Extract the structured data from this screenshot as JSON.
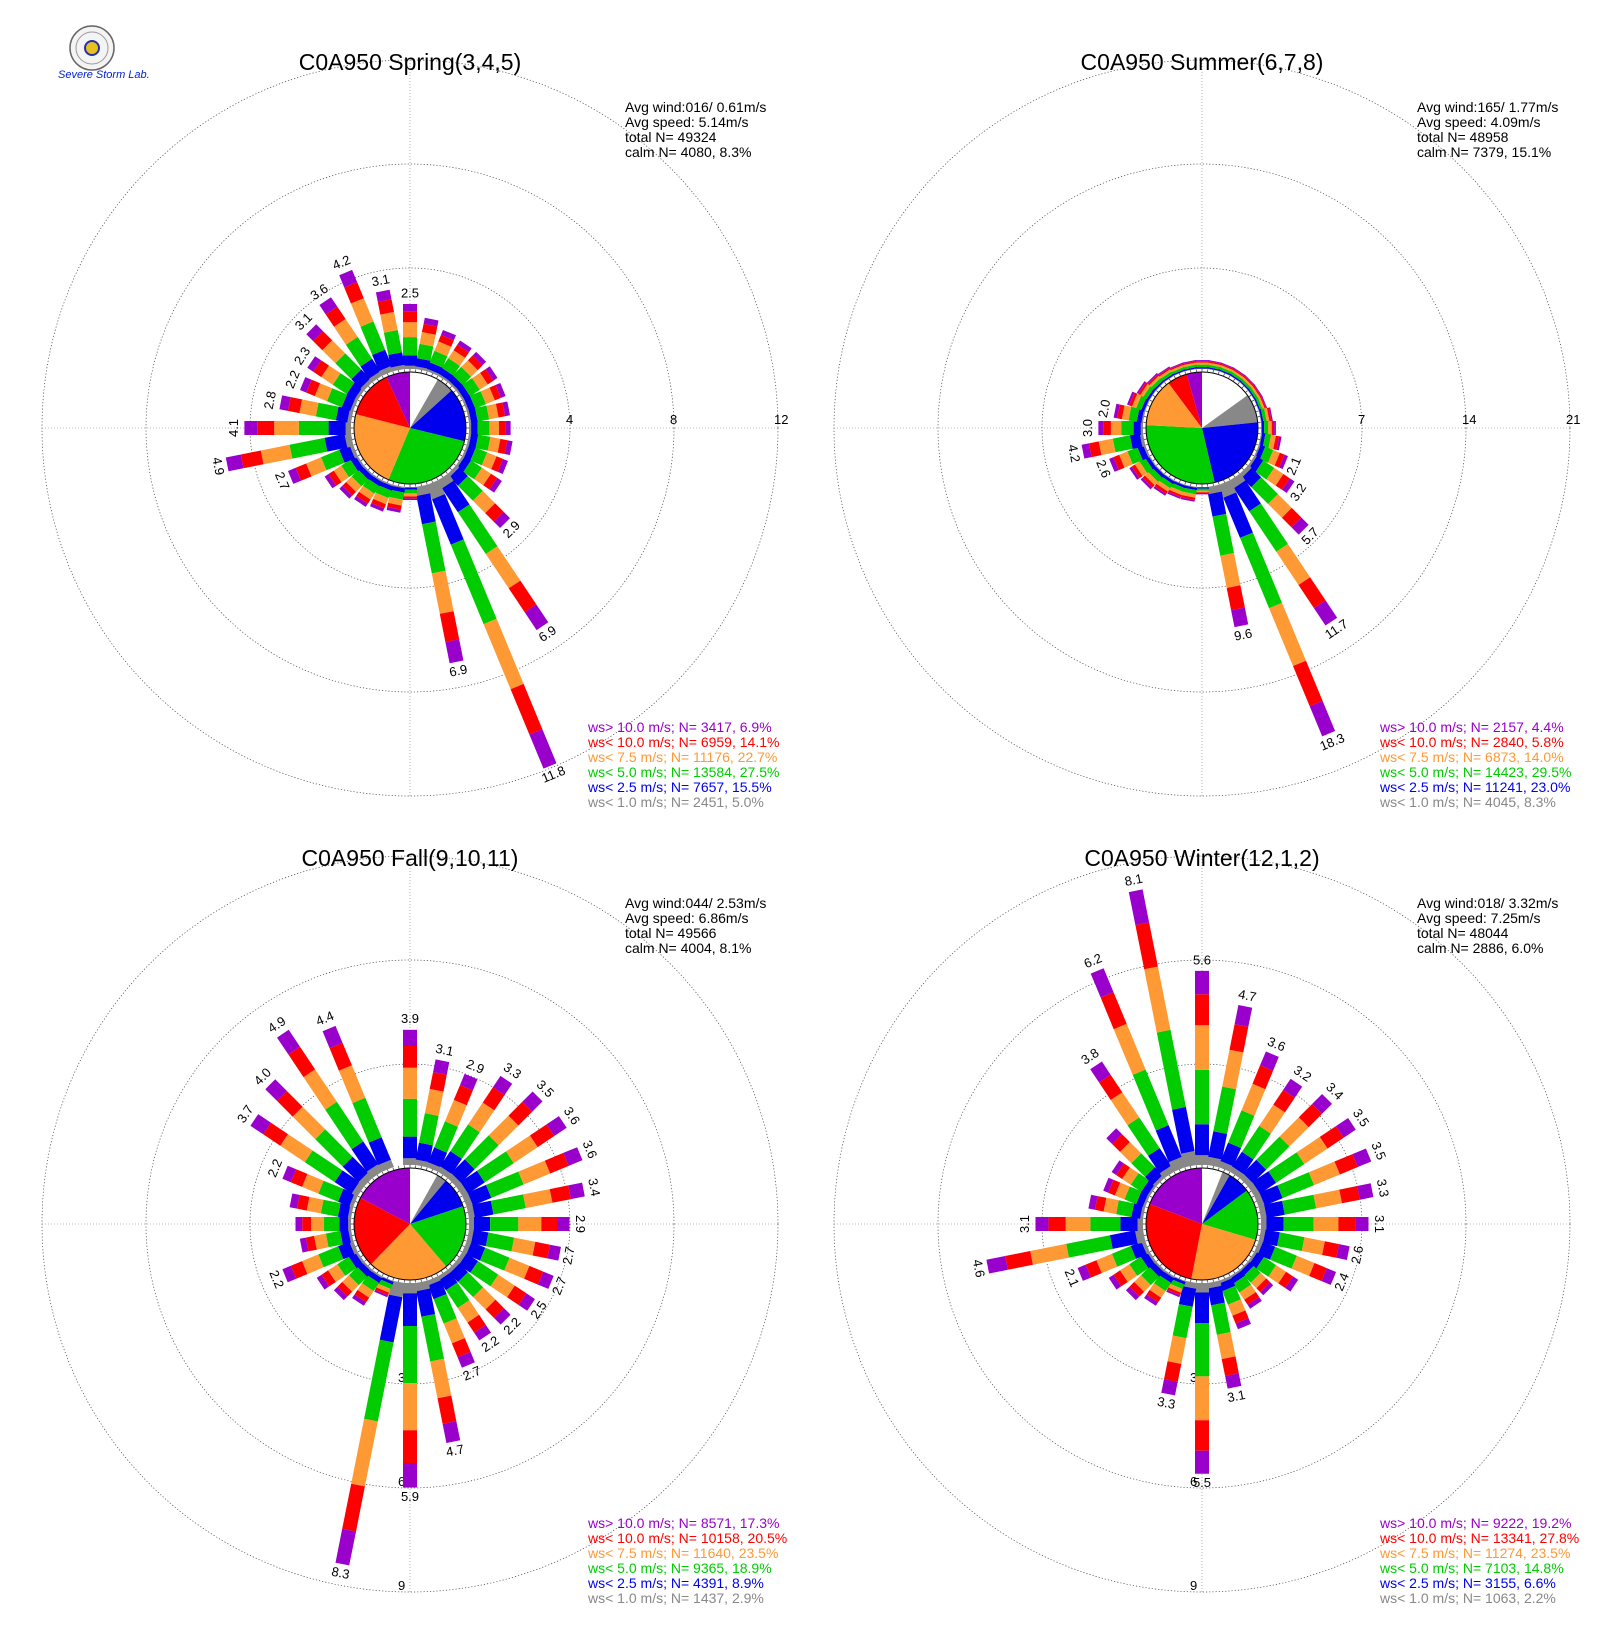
{
  "colors": {
    "calm": "#ffffff",
    "lt1": "#888888",
    "lt2_5": "#0000ee",
    "lt5": "#00cc00",
    "lt7_5": "#ff9933",
    "lt10": "#ff0000",
    "gt10": "#9900cc"
  },
  "logo": {
    "icon": "severe-storm-lab-seal-icon",
    "text": "Severe Storm Lab."
  },
  "chart_data": [
    {
      "type": "wind-rose",
      "title": "C0A950 Spring(3,4,5)",
      "stats": [
        "Avg wind:016/ 0.61m/s",
        "Avg speed: 5.14m/s",
        "total N=      49324",
        "calm N=   4080,   8.3%"
      ],
      "ring_values": [
        4,
        8,
        12
      ],
      "ring_labels": [
        "4",
        "8",
        "12"
      ],
      "rmax": 12,
      "legend": [
        {
          "text": "ws> 10.0 m/s; N=  3417,  6.9%",
          "color": "gt10"
        },
        {
          "text": "ws< 10.0 m/s; N=  6959, 14.1%",
          "color": "lt10"
        },
        {
          "text": "ws<  7.5 m/s; N= 11176, 22.7%",
          "color": "lt7_5"
        },
        {
          "text": "ws<  5.0 m/s; N= 13584, 27.5%",
          "color": "lt5"
        },
        {
          "text": "ws<  2.5 m/s; N=  7657, 15.5%",
          "color": "lt2_5"
        },
        {
          "text": "ws<  1.0 m/s; N=  2451,  5.0%",
          "color": "lt1"
        }
      ],
      "pie": [
        8.3,
        5.0,
        15.5,
        27.5,
        22.7,
        14.1,
        6.9
      ],
      "totals": [
        2.5,
        2.0,
        1.7,
        1.6,
        1.6,
        1.6,
        1.6,
        1.6,
        1.6,
        1.7,
        1.7,
        1.8,
        2.9,
        6.9,
        11.8,
        6.9,
        0.5,
        1.0,
        1.1,
        1.2,
        1.3,
        1.5,
        2.7,
        4.9,
        4.1,
        2.8,
        2.2,
        2.3,
        3.1,
        3.6,
        4.2,
        3.1
      ],
      "labels": [
        "2.5",
        "",
        "",
        "",
        "",
        "",
        "",
        "",
        "",
        "",
        "",
        "",
        "2.9",
        "6.9",
        "11.8",
        "6.9",
        "",
        "",
        "",
        "",
        "",
        "",
        "2.7",
        "4.9",
        "4.1",
        "2.8",
        "2.2",
        "2.3",
        "3.1",
        "3.6",
        "4.2",
        "3.1"
      ]
    },
    {
      "type": "wind-rose",
      "title": "C0A950 Summer(6,7,8)",
      "stats": [
        "Avg wind:165/ 1.77m/s",
        "Avg speed: 4.09m/s",
        "total N=      48958",
        "calm N=   7379,  15.1%"
      ],
      "ring_values": [
        7,
        14,
        21
      ],
      "ring_labels": [
        "7",
        "14",
        "21"
      ],
      "rmax": 21,
      "legend": [
        {
          "text": "ws> 10.0 m/s; N=  2157,  4.4%",
          "color": "gt10"
        },
        {
          "text": "ws< 10.0 m/s; N=  2840,  5.8%",
          "color": "lt10"
        },
        {
          "text": "ws<  7.5 m/s; N=  6873, 14.0%",
          "color": "lt7_5"
        },
        {
          "text": "ws<  5.0 m/s; N= 14423, 29.5%",
          "color": "lt5"
        },
        {
          "text": "ws<  2.5 m/s; N= 11241, 23.0%",
          "color": "lt2_5"
        },
        {
          "text": "ws<  1.0 m/s; N=  4045,  8.3%",
          "color": "lt1"
        }
      ],
      "pie": [
        15.1,
        8.3,
        23.0,
        29.5,
        14.0,
        5.8,
        4.4
      ],
      "totals": [
        0.6,
        0.6,
        0.6,
        0.6,
        0.6,
        0.6,
        0.6,
        0.8,
        1.0,
        1.4,
        2.1,
        3.2,
        5.7,
        11.7,
        18.3,
        9.6,
        0.5,
        1.0,
        1.0,
        1.2,
        1.4,
        1.6,
        2.6,
        4.2,
        3.0,
        2.0,
        1.3,
        1.0,
        0.8,
        0.7,
        0.6,
        0.6
      ],
      "labels": [
        "",
        "",
        "",
        "",
        "",
        "",
        "",
        "",
        "",
        "",
        "2.1",
        "3.2",
        "5.7",
        "11.7",
        "18.3",
        "9.6",
        "",
        "",
        "",
        "",
        "",
        "",
        "2.6",
        "4.2",
        "3.0",
        "2.0",
        "",
        "",
        "",
        "",
        "",
        ""
      ]
    },
    {
      "type": "wind-rose",
      "title": "C0A950 Fall(9,10,11)",
      "stats": [
        "Avg wind:044/ 2.53m/s",
        "Avg speed: 6.86m/s",
        "total N=      49566",
        "calm N=   4004,   8.1%"
      ],
      "ring_values": [
        3,
        6,
        9
      ],
      "ring_labels": [
        "3",
        "6",
        "9"
      ],
      "rmax": 9,
      "legend": [
        {
          "text": "ws> 10.0 m/s; N=  8571, 17.3%",
          "color": "gt10"
        },
        {
          "text": "ws< 10.0 m/s; N= 10158, 20.5%",
          "color": "lt10"
        },
        {
          "text": "ws<  7.5 m/s; N= 11640, 23.5%",
          "color": "lt7_5"
        },
        {
          "text": "ws<  5.0 m/s; N=  9365, 18.9%",
          "color": "lt5"
        },
        {
          "text": "ws<  2.5 m/s; N=  4391,  8.9%",
          "color": "lt2_5"
        },
        {
          "text": "ws<  1.0 m/s; N=  1437,  2.9%",
          "color": "lt1"
        }
      ],
      "pie": [
        8.1,
        2.9,
        8.9,
        18.9,
        23.5,
        20.5,
        17.3
      ],
      "totals": [
        3.9,
        3.1,
        2.9,
        3.3,
        3.5,
        3.6,
        3.6,
        3.4,
        2.9,
        2.7,
        2.7,
        2.5,
        2.2,
        2.2,
        2.7,
        4.7,
        5.9,
        8.3,
        0.5,
        1.0,
        1.2,
        1.4,
        2.2,
        1.5,
        1.6,
        1.8,
        2.2,
        3.7,
        4.0,
        4.9,
        4.4,
        0.0
      ],
      "labels": [
        "3.9",
        "3.1",
        "2.9",
        "3.3",
        "3.5",
        "3.6",
        "3.6",
        "3.4",
        "2.9",
        "2.7",
        "2.7",
        "2.5",
        "2.2",
        "2.2",
        "2.7",
        "4.7",
        "5.9",
        "8.3",
        "",
        "",
        "",
        "",
        "2.2",
        "",
        "",
        "",
        "2.2",
        "3.7",
        "4.0",
        "4.9",
        "4.4",
        ""
      ]
    },
    {
      "type": "wind-rose",
      "title": "C0A950 Winter(12,1,2)",
      "stats": [
        "Avg wind:018/ 3.32m/s",
        "Avg speed: 7.25m/s",
        "total N=      48044",
        "calm N=   2886,   6.0%"
      ],
      "ring_values": [
        3,
        6,
        9
      ],
      "ring_labels": [
        "3",
        "6",
        "9"
      ],
      "rmax": 9,
      "legend": [
        {
          "text": "ws> 10.0 m/s; N=  9222, 19.2%",
          "color": "gt10"
        },
        {
          "text": "ws< 10.0 m/s; N= 13341, 27.8%",
          "color": "lt10"
        },
        {
          "text": "ws<  7.5 m/s; N= 11274, 23.5%",
          "color": "lt7_5"
        },
        {
          "text": "ws<  5.0 m/s; N=  7103, 14.8%",
          "color": "lt5"
        },
        {
          "text": "ws<  2.5 m/s; N=  3155,  6.6%",
          "color": "lt2_5"
        },
        {
          "text": "ws<  1.0 m/s; N=  1063,  2.2%",
          "color": "lt1"
        }
      ],
      "pie": [
        6.0,
        2.2,
        6.6,
        14.8,
        23.5,
        27.8,
        19.2
      ],
      "totals": [
        5.6,
        4.7,
        3.6,
        3.2,
        3.4,
        3.5,
        3.5,
        3.3,
        3.1,
        2.6,
        2.4,
        1.5,
        1.0,
        1.1,
        1.5,
        3.1,
        5.5,
        3.3,
        0.5,
        1.0,
        1.2,
        1.4,
        2.1,
        4.6,
        3.1,
        1.6,
        1.3,
        1.3,
        2.0,
        3.8,
        6.2,
        8.1
      ],
      "labels": [
        "5.6",
        "4.7",
        "3.6",
        "3.2",
        "3.4",
        "3.5",
        "3.5",
        "3.3",
        "3.1",
        "2.6",
        "2.4",
        "",
        "",
        "",
        "",
        "3.1",
        "5.5",
        "3.3",
        "",
        "",
        "",
        "",
        "2.1",
        "4.6",
        "3.1",
        "",
        "",
        "",
        "",
        "3.8",
        "6.2",
        "8.1"
      ]
    }
  ]
}
